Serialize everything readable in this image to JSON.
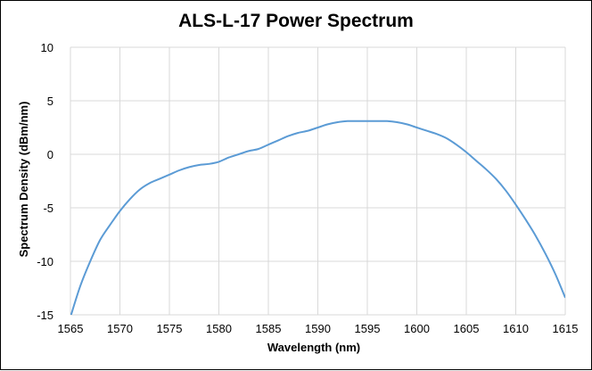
{
  "chart_data": {
    "type": "line",
    "title": "ALS-L-17 Power Spectrum",
    "xlabel": "Wavelength (nm)",
    "ylabel": "Spectrum Density (dBm/nm)",
    "xlim": [
      1565,
      1615
    ],
    "ylim": [
      -15,
      10
    ],
    "x_ticks": [
      1565,
      1570,
      1575,
      1580,
      1585,
      1590,
      1595,
      1600,
      1605,
      1610,
      1615
    ],
    "y_ticks": [
      10,
      5,
      0,
      -5,
      -10,
      -15
    ],
    "grid": true,
    "legend": "none",
    "series": [
      {
        "color": "#5b9bd5",
        "x": [
          1565,
          1566,
          1567,
          1568,
          1569,
          1570,
          1571,
          1572,
          1573,
          1574,
          1575,
          1576,
          1577,
          1578,
          1579,
          1580,
          1581,
          1582,
          1583,
          1584,
          1585,
          1586,
          1587,
          1588,
          1589,
          1590,
          1591,
          1592,
          1593,
          1594,
          1595,
          1596,
          1597,
          1598,
          1599,
          1600,
          1601,
          1602,
          1603,
          1604,
          1605,
          1606,
          1607,
          1608,
          1609,
          1610,
          1611,
          1612,
          1613,
          1614,
          1615
        ],
        "y": [
          -15.2,
          -12.3,
          -10.0,
          -8.0,
          -6.6,
          -5.3,
          -4.2,
          -3.3,
          -2.7,
          -2.3,
          -1.9,
          -1.5,
          -1.2,
          -1.0,
          -0.9,
          -0.7,
          -0.3,
          0.0,
          0.3,
          0.5,
          0.9,
          1.3,
          1.7,
          2.0,
          2.2,
          2.5,
          2.8,
          3.0,
          3.1,
          3.1,
          3.1,
          3.1,
          3.1,
          3.0,
          2.8,
          2.5,
          2.2,
          1.9,
          1.5,
          0.9,
          0.2,
          -0.6,
          -1.4,
          -2.3,
          -3.4,
          -4.7,
          -6.1,
          -7.6,
          -9.3,
          -11.2,
          -13.4
        ]
      }
    ]
  }
}
